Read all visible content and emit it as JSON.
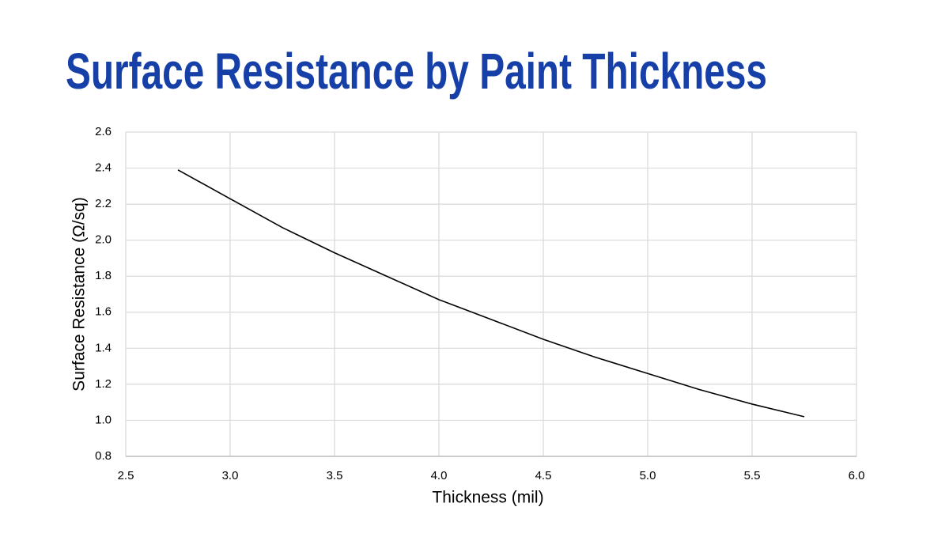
{
  "chart_data": {
    "type": "line",
    "title": "Surface Resistance by Paint Thickness",
    "x_label": "Thickness (mil)",
    "y_label": "Surface Resistance (Ω/sq)",
    "x": [
      2.75,
      3.0,
      3.25,
      3.5,
      3.75,
      4.0,
      4.25,
      4.5,
      4.75,
      5.0,
      5.25,
      5.5,
      5.75
    ],
    "series": [
      {
        "color": "#000000",
        "values": [
          2.39,
          2.23,
          2.07,
          1.93,
          1.8,
          1.67,
          1.56,
          1.45,
          1.35,
          1.26,
          1.17,
          1.09,
          1.02
        ]
      }
    ],
    "xlim": [
      2.5,
      6.0
    ],
    "xticks": [
      2.5,
      {
        "value": 3,
        "label": "3.0"
      },
      3.5,
      {
        "value": 4,
        "label": "4.0"
      },
      4.5,
      {
        "value": 5,
        "label": "5.0"
      },
      5.5,
      {
        "value": 6,
        "label": "6.0"
      }
    ],
    "ylim": [
      0.8,
      2.6
    ],
    "yticks": [
      0.8,
      {
        "value": 1,
        "label": "1.0"
      },
      1.2,
      1.4,
      1.6,
      1.8,
      {
        "value": 2,
        "label": "2.0"
      },
      2.2,
      2.4,
      2.6
    ],
    "grid": true
  }
}
